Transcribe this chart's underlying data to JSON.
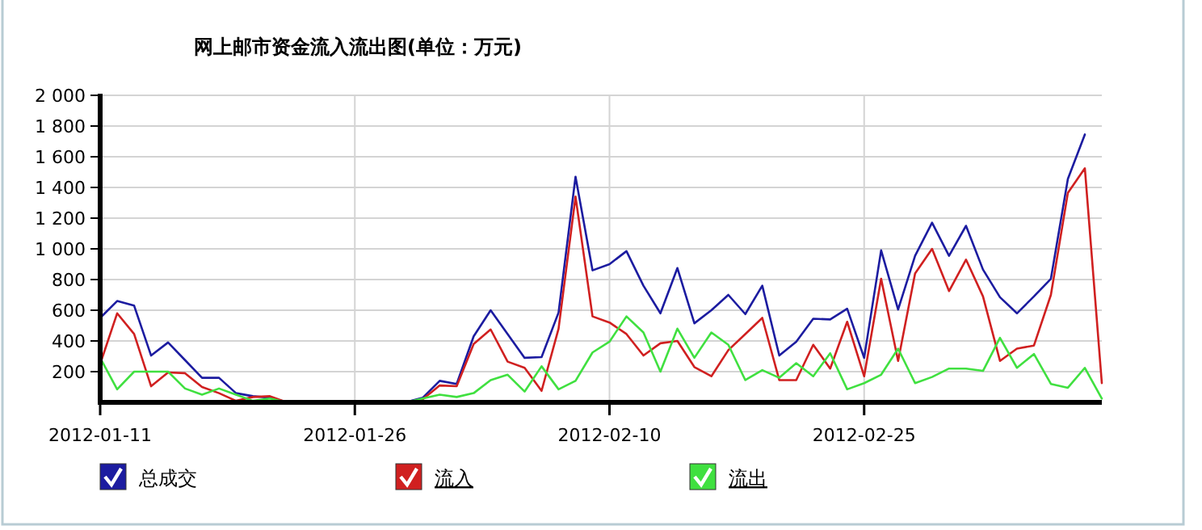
{
  "chart_data": {
    "type": "line",
    "title": "网上邮市资金流入流出图(单位：万元)",
    "x": [
      "2012-01-11",
      "2012-01-12",
      "2012-01-13",
      "2012-01-14",
      "2012-01-15",
      "2012-01-16",
      "2012-01-17",
      "2012-01-18",
      "2012-01-19",
      "2012-01-20",
      "2012-01-21",
      "2012-01-22",
      "2012-01-23",
      "2012-01-24",
      "2012-01-25",
      "2012-01-26",
      "2012-01-27",
      "2012-01-28",
      "2012-01-29",
      "2012-01-30",
      "2012-01-31",
      "2012-02-01",
      "2012-02-02",
      "2012-02-03",
      "2012-02-04",
      "2012-02-05",
      "2012-02-06",
      "2012-02-07",
      "2012-02-08",
      "2012-02-09",
      "2012-02-10",
      "2012-02-11",
      "2012-02-12",
      "2012-02-13",
      "2012-02-14",
      "2012-02-15",
      "2012-02-16",
      "2012-02-17",
      "2012-02-18",
      "2012-02-19",
      "2012-02-20",
      "2012-02-21",
      "2012-02-22",
      "2012-02-23",
      "2012-02-24",
      "2012-02-25",
      "2012-02-26",
      "2012-02-27",
      "2012-02-28",
      "2012-02-29",
      "2012-03-01",
      "2012-03-02",
      "2012-03-03",
      "2012-03-04",
      "2012-03-05",
      "2012-03-06",
      "2012-03-07",
      "2012-03-08",
      "2012-03-09",
      "2012-03-10"
    ],
    "series": [
      {
        "name": "总成交",
        "color": "#1c1ca0",
        "values": [
          550,
          660,
          630,
          305,
          390,
          275,
          160,
          160,
          60,
          40,
          30,
          0,
          0,
          0,
          0,
          0,
          0,
          0,
          0,
          30,
          140,
          120,
          430,
          600,
          445,
          290,
          295,
          585,
          1470,
          860,
          900,
          985,
          760,
          580,
          875,
          515,
          600,
          700,
          575,
          760,
          305,
          395,
          545,
          540,
          610,
          290,
          990,
          605,
          955,
          1170,
          955,
          1150,
          865,
          685,
          580,
          690,
          805,
          1455,
          1745,
          null
        ]
      },
      {
        "name": "流入",
        "color": "#d02020",
        "values": [
          250,
          580,
          445,
          105,
          195,
          190,
          100,
          60,
          10,
          35,
          40,
          0,
          0,
          0,
          0,
          0,
          0,
          0,
          0,
          20,
          110,
          105,
          380,
          475,
          265,
          225,
          75,
          480,
          1340,
          560,
          520,
          445,
          305,
          385,
          400,
          230,
          170,
          340,
          445,
          550,
          145,
          145,
          375,
          220,
          525,
          170,
          805,
          270,
          840,
          1000,
          725,
          930,
          690,
          270,
          350,
          370,
          700,
          1365,
          1525,
          125
        ]
      },
      {
        "name": "流出",
        "color": "#40e040",
        "values": [
          290,
          85,
          200,
          200,
          200,
          90,
          50,
          90,
          50,
          10,
          25,
          0,
          0,
          0,
          0,
          0,
          0,
          0,
          0,
          25,
          50,
          35,
          60,
          145,
          180,
          70,
          235,
          85,
          140,
          325,
          395,
          560,
          455,
          200,
          480,
          290,
          455,
          375,
          145,
          210,
          160,
          255,
          170,
          320,
          85,
          125,
          180,
          350,
          125,
          165,
          220,
          220,
          205,
          420,
          225,
          315,
          120,
          95,
          225,
          25
        ]
      }
    ],
    "xlim": [
      "2012-01-11",
      "2012-03-10"
    ],
    "xticks": [
      "2012-01-11",
      "2012-01-26",
      "2012-02-10",
      "2012-02-25"
    ],
    "ylim": [
      0,
      2000
    ],
    "yticks": [
      200,
      400,
      600,
      800,
      {
        "value": 1000,
        "label": "1 000"
      },
      {
        "value": 1200,
        "label": "1 200"
      },
      {
        "value": 1400,
        "label": "1 400"
      },
      {
        "value": 1600,
        "label": "1 600"
      },
      {
        "value": 1800,
        "label": "1 800"
      },
      {
        "value": 2000,
        "label": "2 000"
      }
    ],
    "grid": true,
    "legend": "bottom"
  }
}
